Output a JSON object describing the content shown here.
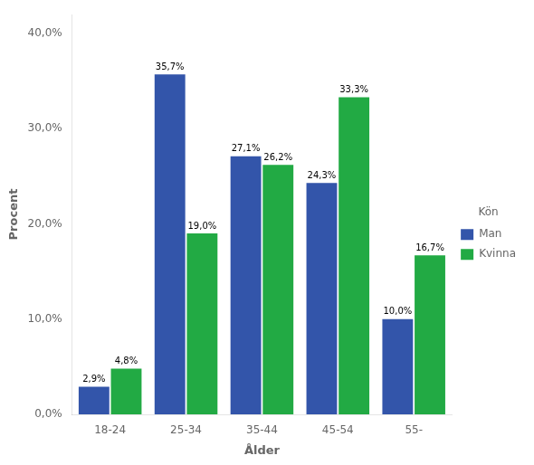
{
  "chart_data": {
    "type": "bar",
    "categories": [
      "18-24",
      "25-34",
      "35-44",
      "45-54",
      "55-"
    ],
    "series": [
      {
        "name": "Man",
        "color": "#3355aa",
        "values": [
          2.9,
          35.7,
          27.1,
          24.3,
          10.0
        ],
        "value_labels": [
          "2,9%",
          "35,7%",
          "27,1%",
          "24,3%",
          "10,0%"
        ]
      },
      {
        "name": "Kvinna",
        "color": "#22aa44",
        "values": [
          4.8,
          19.0,
          26.2,
          33.3,
          16.7
        ],
        "value_labels": [
          "4,8%",
          "19,0%",
          "26,2%",
          "33,3%",
          "16,7%"
        ]
      }
    ],
    "x_label": "Ålder",
    "y_label": "Procent",
    "legend_title": "Kön",
    "legend": "right",
    "grid": false,
    "data_labels": true,
    "ylim": [
      0,
      42
    ],
    "yticks": [
      {
        "value": 0.0,
        "label": "0,0%"
      },
      {
        "value": 10.0,
        "label": "10,0%"
      },
      {
        "value": 20.0,
        "label": "20,0%"
      },
      {
        "value": 30.0,
        "label": "30,0%"
      },
      {
        "value": 40.0,
        "label": "40,0%"
      }
    ]
  }
}
